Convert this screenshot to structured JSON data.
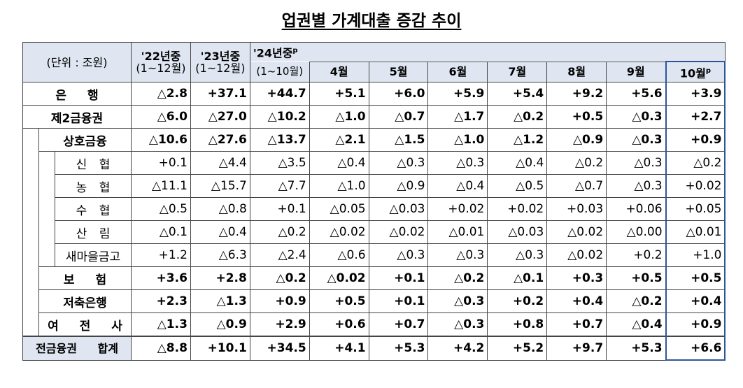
{
  "title": "업권별 가계대출 증감 추이",
  "header": {
    "unit": "(단위 : 조원)",
    "periods": [
      {
        "label": "'22년중",
        "sub": "(1~12월)"
      },
      {
        "label": "'23년중",
        "sub": "(1~12월)"
      }
    ],
    "current": {
      "label": "'24년중",
      "mark": "p",
      "sub": "(1~10월)"
    },
    "months": [
      {
        "label": "4월"
      },
      {
        "label": "5월"
      },
      {
        "label": "6월"
      },
      {
        "label": "7월"
      },
      {
        "label": "8월"
      },
      {
        "label": "9월"
      },
      {
        "label": "10월",
        "mark": "p"
      }
    ]
  },
  "rows": [
    {
      "label": "은 행",
      "values": [
        "△2.8",
        "+37.1",
        "+44.7",
        "+5.1",
        "+6.0",
        "+5.9",
        "+5.4",
        "+9.2",
        "+5.6",
        "+3.9"
      ]
    },
    {
      "label": "제2금융권",
      "values": [
        "△6.0",
        "△27.0",
        "△10.2",
        "△1.0",
        "△0.7",
        "△1.7",
        "△0.2",
        "+0.5",
        "△0.3",
        "+2.7"
      ],
      "children": [
        {
          "label": "상호금융",
          "values": [
            "△10.6",
            "△27.6",
            "△13.7",
            "△2.1",
            "△1.5",
            "△1.0",
            "△1.2",
            "△0.9",
            "△0.3",
            "+0.9"
          ],
          "children": [
            {
              "label": "신 협",
              "values": [
                "+0.1",
                "△4.4",
                "△3.5",
                "△0.4",
                "△0.3",
                "△0.3",
                "△0.4",
                "△0.2",
                "△0.3",
                "△0.2"
              ]
            },
            {
              "label": "농 협",
              "values": [
                "△11.1",
                "△15.7",
                "△7.7",
                "△1.0",
                "△0.9",
                "△0.4",
                "△0.5",
                "△0.7",
                "△0.3",
                "+0.02"
              ]
            },
            {
              "label": "수 협",
              "values": [
                "△0.5",
                "△0.8",
                "+0.1",
                "△0.05",
                "△0.03",
                "+0.02",
                "+0.02",
                "+0.03",
                "+0.06",
                "+0.05"
              ]
            },
            {
              "label": "산 림",
              "values": [
                "△0.1",
                "△0.4",
                "△0.2",
                "△0.02",
                "△0.02",
                "△0.01",
                "△0.03",
                "△0.02",
                "△0.00",
                "△0.01"
              ]
            },
            {
              "label": "새마을금고",
              "values": [
                "+1.2",
                "△6.3",
                "△2.4",
                "△0.6",
                "△0.3",
                "△0.3",
                "△0.3",
                "△0.02",
                "+0.2",
                "+1.0"
              ]
            }
          ]
        },
        {
          "label": "보 험",
          "values": [
            "+3.6",
            "+2.8",
            "△0.2",
            "△0.02",
            "+0.1",
            "△0.2",
            "△0.1",
            "+0.3",
            "+0.5",
            "+0.5"
          ]
        },
        {
          "label": "저축은행",
          "values": [
            "+2.3",
            "△1.3",
            "+0.9",
            "+0.5",
            "+0.1",
            "△0.3",
            "+0.2",
            "+0.4",
            "△0.2",
            "+0.4"
          ]
        },
        {
          "label": "여 전 사",
          "values": [
            "△1.3",
            "△0.9",
            "+2.9",
            "+0.6",
            "+0.7",
            "△0.3",
            "+0.8",
            "+0.7",
            "△0.4",
            "+0.9"
          ]
        }
      ]
    }
  ],
  "total": {
    "label": "전금융권 합계",
    "values": [
      "△8.8",
      "+10.1",
      "+34.5",
      "+4.1",
      "+5.3",
      "+4.2",
      "+5.2",
      "+9.7",
      "+5.3",
      "+6.6"
    ]
  }
}
